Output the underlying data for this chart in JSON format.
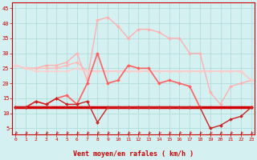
{
  "xlabel": "Vent moyen/en rafales ( km/h )",
  "x": [
    0,
    1,
    2,
    3,
    4,
    5,
    6,
    7,
    8,
    9,
    10,
    11,
    12,
    13,
    14,
    15,
    16,
    17,
    18,
    19,
    20,
    21,
    22,
    23
  ],
  "series": [
    {
      "name": "rafales_top",
      "color": "#ffb0b0",
      "lw": 1.0,
      "marker": "D",
      "ms": 2.0,
      "values": [
        26,
        25,
        25,
        26,
        26,
        27,
        30,
        21,
        41,
        42,
        39,
        35,
        38,
        38,
        37,
        35,
        35,
        30,
        30,
        17,
        13,
        19,
        20,
        21
      ]
    },
    {
      "name": "rafales_mid",
      "color": "#ffb8b8",
      "lw": 1.0,
      "marker": "D",
      "ms": 2.0,
      "values": [
        26,
        25,
        25,
        25,
        25,
        26,
        27,
        24,
        24,
        24,
        24,
        24,
        24,
        24,
        24,
        24,
        24,
        24,
        24,
        24,
        24,
        24,
        24,
        21
      ]
    },
    {
      "name": "rafales_low",
      "color": "#ffcccc",
      "lw": 1.0,
      "marker": "D",
      "ms": 2.0,
      "values": [
        26,
        25,
        24,
        24,
        24,
        24,
        25,
        24,
        24,
        24,
        24,
        24,
        24,
        24,
        24,
        24,
        24,
        24,
        24,
        24,
        24,
        24,
        24,
        21
      ]
    },
    {
      "name": "vent_medium",
      "color": "#ff6060",
      "lw": 1.2,
      "marker": "D",
      "ms": 2.0,
      "values": [
        12,
        12,
        14,
        13,
        15,
        16,
        13,
        20,
        30,
        20,
        21,
        26,
        25,
        25,
        20,
        21,
        20,
        19,
        12,
        12,
        12,
        12,
        12,
        12
      ]
    },
    {
      "name": "vent_flat1",
      "color": "#dd0000",
      "lw": 2.5,
      "marker": null,
      "ms": 0,
      "values": [
        12,
        12,
        12,
        12,
        12,
        12,
        12,
        12,
        12,
        12,
        12,
        12,
        12,
        12,
        12,
        12,
        12,
        12,
        12,
        12,
        12,
        12,
        12,
        12
      ]
    },
    {
      "name": "vent_flat2",
      "color": "#cc0000",
      "lw": 1.5,
      "marker": null,
      "ms": 0,
      "values": [
        12,
        12,
        12,
        12,
        12,
        12,
        12,
        12,
        12,
        12,
        12,
        12,
        12,
        12,
        12,
        12,
        12,
        12,
        12,
        12,
        12,
        12,
        12,
        12
      ]
    },
    {
      "name": "vent_min",
      "color": "#cc2222",
      "lw": 1.0,
      "marker": "D",
      "ms": 2.0,
      "values": [
        12,
        12,
        14,
        13,
        15,
        13,
        13,
        14,
        7,
        12,
        12,
        12,
        12,
        12,
        12,
        12,
        12,
        12,
        12,
        5,
        6,
        8,
        9,
        12
      ]
    }
  ],
  "background_color": "#d4f0f0",
  "grid_color": "#aad8d8",
  "ylim_min": 3,
  "ylim_max": 47,
  "yticks": [
    5,
    10,
    15,
    20,
    25,
    30,
    35,
    40,
    45
  ],
  "xlim_min": -0.3,
  "xlim_max": 23.3,
  "xticks": [
    0,
    1,
    2,
    3,
    4,
    5,
    6,
    7,
    8,
    9,
    10,
    11,
    12,
    13,
    14,
    15,
    16,
    17,
    18,
    19,
    20,
    21,
    22,
    23
  ],
  "arrow_color": "#cc0000",
  "tick_color": "#cc0000",
  "label_color": "#cc0000",
  "spine_color": "#cc0000"
}
